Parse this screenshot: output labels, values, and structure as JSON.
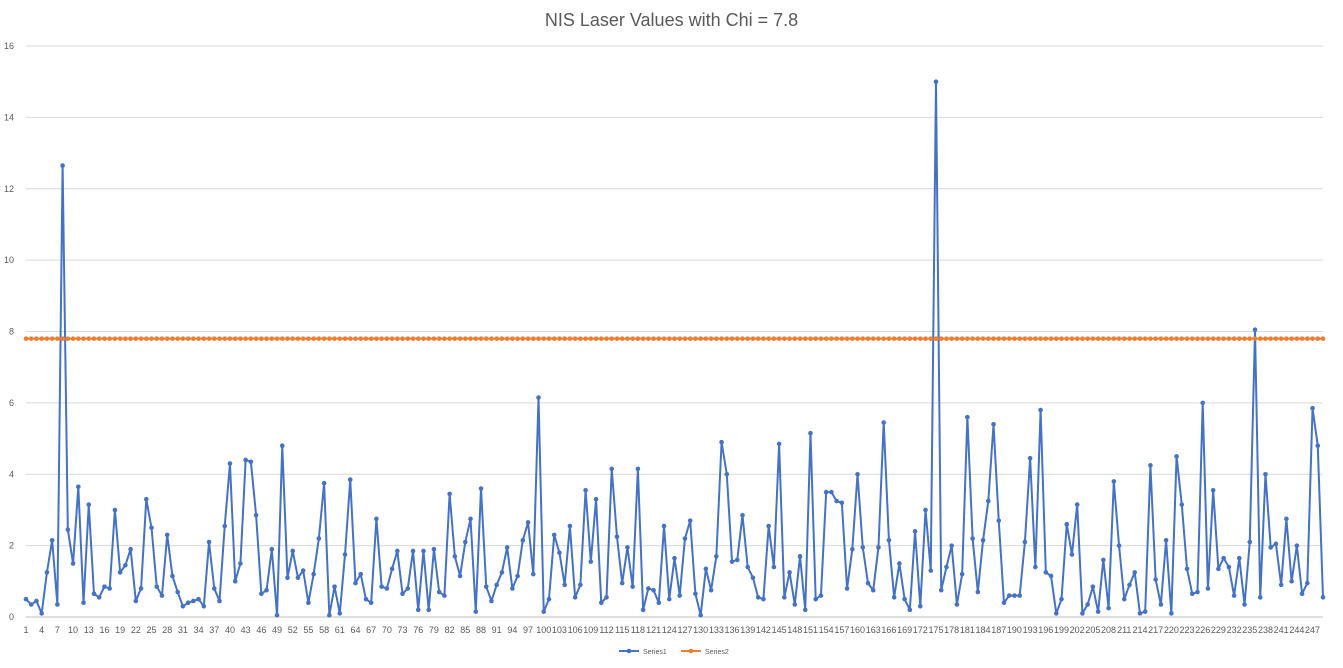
{
  "chart_data": {
    "type": "line",
    "title": "NIS Laser Values with Chi = 7.8",
    "xlabel": "",
    "ylabel": "",
    "ylim": [
      0,
      16
    ],
    "y_ticks": [
      0,
      2,
      4,
      6,
      8,
      10,
      12,
      14,
      16
    ],
    "grid": true,
    "legend_position": "bottom",
    "x_categories_count": 249,
    "x_tick_labels": [
      "1",
      "4",
      "7",
      "10",
      "13",
      "16",
      "19",
      "22",
      "25",
      "28",
      "31",
      "34",
      "37",
      "40",
      "43",
      "46",
      "49",
      "52",
      "55",
      "58",
      "61",
      "64",
      "67",
      "70",
      "73",
      "76",
      "79",
      "82",
      "85",
      "88",
      "91",
      "94",
      "97",
      "100",
      "103",
      "106",
      "109",
      "112",
      "115",
      "118",
      "121",
      "124",
      "127",
      "130",
      "133",
      "136",
      "139",
      "142",
      "145",
      "148",
      "151",
      "154",
      "157",
      "160",
      "163",
      "166",
      "169",
      "172",
      "175",
      "178",
      "181",
      "184",
      "187",
      "190",
      "193",
      "196",
      "199",
      "202",
      "205",
      "208",
      "211",
      "214",
      "217",
      "220",
      "223",
      "226",
      "229",
      "232",
      "235",
      "238",
      "241",
      "244",
      "247"
    ],
    "series": [
      {
        "name": "Series1",
        "color": "#4472C4",
        "values": [
          0.5,
          0.35,
          0.45,
          0.1,
          1.25,
          2.15,
          0.35,
          12.65,
          2.45,
          1.5,
          3.65,
          0.4,
          3.15,
          0.65,
          0.55,
          0.85,
          0.8,
          3.0,
          1.25,
          1.45,
          1.9,
          0.45,
          0.8,
          3.3,
          2.5,
          0.85,
          0.6,
          2.3,
          1.15,
          0.7,
          0.3,
          0.4,
          0.45,
          0.5,
          0.3,
          2.1,
          0.8,
          0.45,
          2.55,
          4.3,
          1.0,
          1.5,
          4.4,
          4.35,
          2.85,
          0.65,
          0.75,
          1.9,
          0.05,
          4.8,
          1.1,
          1.85,
          1.1,
          1.3,
          0.4,
          1.2,
          2.2,
          3.75,
          0.05,
          0.85,
          0.1,
          1.75,
          3.85,
          0.95,
          1.2,
          0.5,
          0.4,
          2.75,
          0.85,
          0.8,
          1.35,
          1.85,
          0.65,
          0.8,
          1.85,
          0.2,
          1.85,
          0.2,
          1.9,
          0.7,
          0.6,
          3.45,
          1.7,
          1.15,
          2.1,
          2.75,
          0.15,
          3.6,
          0.85,
          0.45,
          0.9,
          1.25,
          1.95,
          0.8,
          1.15,
          2.15,
          2.65,
          1.2,
          6.15,
          0.15,
          0.5,
          2.3,
          1.8,
          0.9,
          2.55,
          0.55,
          0.9,
          3.55,
          1.55,
          3.3,
          0.4,
          0.55,
          4.15,
          2.25,
          0.95,
          1.95,
          0.85,
          4.15,
          0.2,
          0.8,
          0.75,
          0.4,
          2.55,
          0.5,
          1.65,
          0.6,
          2.2,
          2.7,
          0.65,
          0.05,
          1.35,
          0.75,
          1.7,
          4.9,
          4.0,
          1.55,
          1.6,
          2.85,
          1.4,
          1.1,
          0.55,
          0.5,
          2.55,
          1.4,
          4.85,
          0.55,
          1.25,
          0.35,
          1.7,
          0.2,
          5.15,
          0.5,
          0.6,
          3.5,
          3.5,
          3.25,
          3.2,
          0.8,
          1.9,
          4.0,
          1.95,
          0.95,
          0.75,
          1.95,
          5.45,
          2.15,
          0.55,
          1.5,
          0.5,
          0.2,
          2.4,
          0.3,
          3.0,
          1.3,
          15.0,
          0.75,
          1.4,
          2.0,
          0.35,
          1.2,
          5.6,
          2.2,
          0.7,
          2.15,
          3.25,
          5.4,
          2.7,
          0.4,
          0.6,
          0.6,
          0.6,
          2.1,
          4.45,
          1.4,
          5.8,
          1.25,
          1.15,
          0.1,
          0.5,
          2.6,
          1.75,
          3.15,
          0.1,
          0.35,
          0.85,
          0.15,
          1.6,
          0.25,
          3.8,
          2.0,
          0.5,
          0.9,
          1.25,
          0.1,
          0.15,
          4.25,
          1.05,
          0.35,
          2.15,
          0.1,
          4.5,
          3.15,
          1.35,
          0.65,
          0.7,
          6.0,
          0.8,
          3.55,
          1.35,
          1.65,
          1.4,
          0.6,
          1.65,
          0.35,
          2.1,
          8.05,
          0.55,
          4.0,
          1.95,
          2.05,
          0.9,
          2.75,
          1.0,
          2.0,
          0.65,
          0.95,
          5.85,
          4.8,
          0.55
        ]
      },
      {
        "name": "Series2",
        "color": "#ED7D31",
        "constant_value": 7.8
      }
    ]
  }
}
